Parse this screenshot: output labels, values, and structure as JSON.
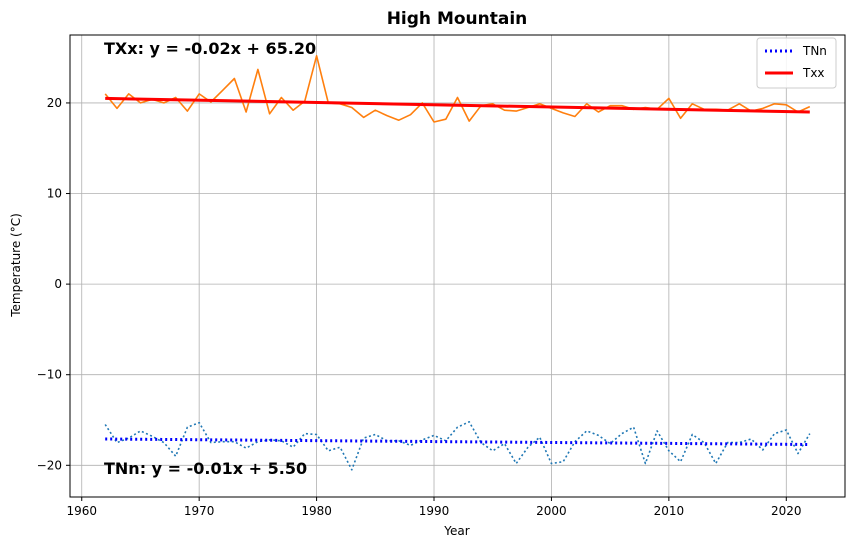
{
  "chart_data": {
    "type": "line",
    "title": "High Mountain",
    "xlabel": "Year",
    "ylabel": "Temperature (°C)",
    "xlim": [
      1959.0,
      2025.0
    ],
    "ylim": [
      -23.5,
      27.5
    ],
    "xticks": [
      1960,
      1970,
      1980,
      1990,
      2000,
      2010,
      2020
    ],
    "yticks": [
      -20,
      -10,
      0,
      10,
      20
    ],
    "xtick_labels": [
      "1960",
      "1970",
      "1980",
      "1990",
      "2000",
      "2010",
      "2020"
    ],
    "ytick_labels": [
      "−20",
      "−10",
      "0",
      "10",
      "20"
    ],
    "grid": true,
    "legend_position": "top-right",
    "annotations": {
      "txx_equation": "TXx: y = -0.02x + 65.20",
      "tnn_equation": "TNn: y = -0.01x + 5.50"
    },
    "legend": [
      {
        "label": "TNn",
        "color": "#0000ff",
        "style": "dotted"
      },
      {
        "label": "Txx",
        "color": "#ff0000",
        "style": "solid"
      }
    ],
    "series": [
      {
        "label": "Txx",
        "role": "data",
        "color": "#ff7f0e",
        "style": "solid",
        "x": [
          1962,
          1963,
          1964,
          1965,
          1966,
          1967,
          1968,
          1969,
          1970,
          1971,
          1972,
          1973,
          1974,
          1975,
          1976,
          1977,
          1978,
          1979,
          1980,
          1981,
          1982,
          1983,
          1984,
          1985,
          1986,
          1987,
          1988,
          1989,
          1990,
          1991,
          1992,
          1993,
          1994,
          1995,
          1996,
          1997,
          1998,
          1999,
          2000,
          2001,
          2002,
          2003,
          2004,
          2005,
          2006,
          2007,
          2008,
          2009,
          2010,
          2011,
          2012,
          2013,
          2014,
          2015,
          2016,
          2017,
          2018,
          2019,
          2020,
          2021,
          2022
        ],
        "y": [
          21.0,
          19.4,
          21.0,
          20.0,
          20.4,
          20.0,
          20.6,
          19.1,
          21.0,
          20.1,
          21.4,
          22.7,
          19.0,
          23.7,
          18.8,
          20.6,
          19.2,
          20.2,
          25.2,
          20.0,
          19.9,
          19.5,
          18.4,
          19.2,
          18.6,
          18.1,
          18.7,
          20.0,
          17.9,
          18.2,
          20.6,
          18.0,
          19.7,
          19.9,
          19.2,
          19.1,
          19.5,
          19.9,
          19.4,
          18.9,
          18.5,
          19.9,
          19.0,
          19.7,
          19.7,
          19.3,
          19.5,
          19.3,
          20.5,
          18.3,
          19.9,
          19.3,
          19.3,
          19.2,
          19.9,
          19.1,
          19.4,
          19.9,
          19.8,
          19.0,
          19.6
        ]
      },
      {
        "label": "TNn",
        "role": "data",
        "color": "#1f77b4",
        "style": "dotted",
        "x": [
          1962,
          1963,
          1964,
          1965,
          1966,
          1967,
          1968,
          1969,
          1970,
          1971,
          1972,
          1973,
          1974,
          1975,
          1976,
          1977,
          1978,
          1979,
          1980,
          1981,
          1982,
          1983,
          1984,
          1985,
          1986,
          1987,
          1988,
          1989,
          1990,
          1991,
          1992,
          1993,
          1994,
          1995,
          1996,
          1997,
          1998,
          1999,
          2000,
          2001,
          2002,
          2003,
          2004,
          2005,
          2006,
          2007,
          2008,
          2009,
          2010,
          2011,
          2012,
          2013,
          2014,
          2015,
          2016,
          2017,
          2018,
          2019,
          2020,
          2021,
          2022
        ],
        "y": [
          -15.5,
          -17.5,
          -17.0,
          -16.2,
          -16.8,
          -17.5,
          -19.0,
          -15.8,
          -15.3,
          -17.5,
          -17.4,
          -17.4,
          -18.1,
          -17.4,
          -17.2,
          -17.3,
          -18.0,
          -16.5,
          -16.6,
          -18.4,
          -18.0,
          -20.5,
          -17.0,
          -16.6,
          -17.3,
          -17.3,
          -17.8,
          -17.2,
          -16.7,
          -17.3,
          -15.8,
          -15.2,
          -17.5,
          -18.4,
          -17.6,
          -19.8,
          -18.0,
          -16.9,
          -19.8,
          -19.6,
          -17.4,
          -16.2,
          -16.7,
          -17.6,
          -16.5,
          -15.8,
          -19.8,
          -16.2,
          -18.4,
          -19.6,
          -16.6,
          -17.5,
          -19.8,
          -17.5,
          -17.5,
          -17.1,
          -18.3,
          -16.5,
          -16.1,
          -18.7,
          -16.5
        ]
      },
      {
        "label": "Txx trend",
        "role": "trend",
        "color": "#ff0000",
        "style": "solid",
        "x": [
          1962,
          2022
        ],
        "y": [
          20.5,
          19.0
        ]
      },
      {
        "label": "TNn trend",
        "role": "trend",
        "color": "#0000ff",
        "style": "dotted",
        "x": [
          1962,
          2022
        ],
        "y": [
          -17.1,
          -17.7
        ]
      }
    ]
  }
}
